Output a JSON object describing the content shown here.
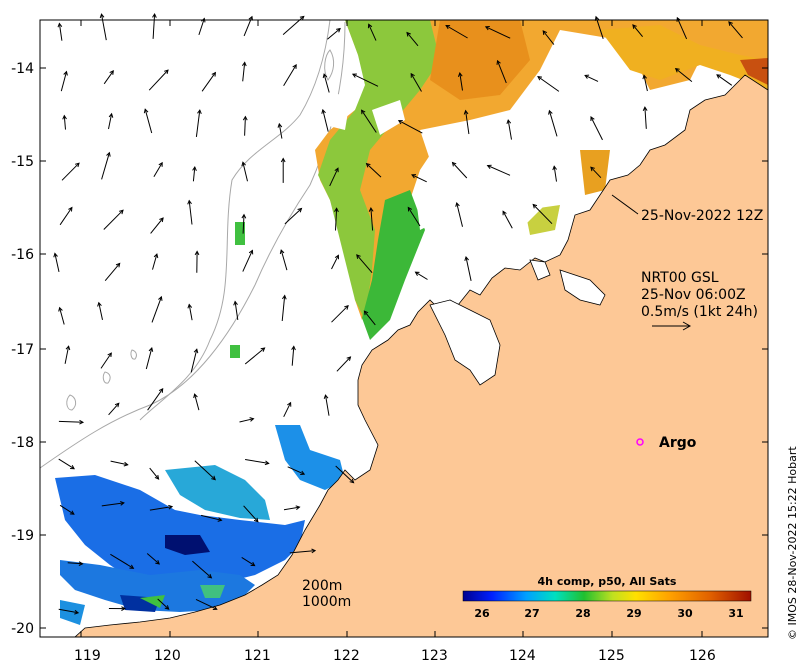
{
  "map": {
    "longitude_ticks": [
      "119",
      "120",
      "121",
      "122",
      "123",
      "124",
      "125",
      "126"
    ],
    "latitude_ticks": [
      "-14",
      "-15",
      "-16",
      "-17",
      "-18",
      "-19",
      "-20"
    ],
    "date_label": "25-Nov-2022 12Z",
    "vector_info": {
      "line1": "NRT00 GSL",
      "line2": "25-Nov 06:00Z",
      "line3": "0.5m/s (1kt 24h)"
    },
    "argo_label": "Argo",
    "depth_labels": [
      "200m",
      "1000m"
    ],
    "colorbar": {
      "title": "4h comp, p50, All Sats",
      "tick_labels": [
        "26",
        "27",
        "28",
        "29",
        "30",
        "31"
      ],
      "range": [
        25.6,
        31.4
      ],
      "colors": [
        "#00008f",
        "#0040ff",
        "#00bfff",
        "#40e080",
        "#20c020",
        "#c0e020",
        "#ffd000",
        "#ff9000",
        "#e06000",
        "#a01000"
      ]
    },
    "credit": "© IMOS 28-Nov-2022 15:22 Hobart",
    "colors": {
      "land": "#fdc896",
      "sea": "#ffffff",
      "argo_marker": "#ff00ff"
    }
  }
}
